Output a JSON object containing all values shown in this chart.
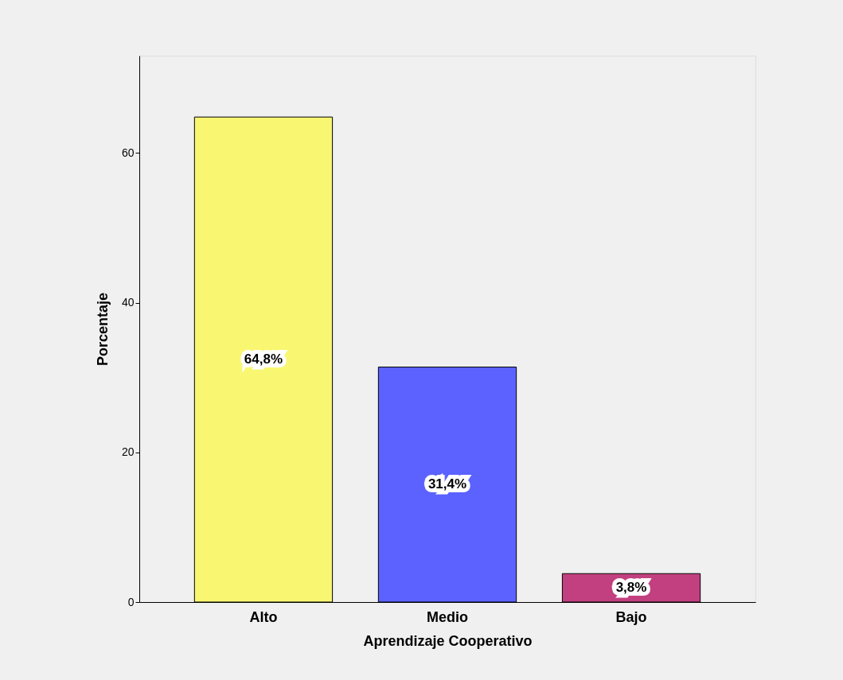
{
  "chart_data": {
    "type": "bar",
    "xlabel": "Aprendizaje Cooperativo",
    "ylabel": "Porcentaje",
    "categories": [
      "Alto",
      "Medio",
      "Bajo"
    ],
    "values": [
      64.8,
      31.4,
      3.8
    ],
    "colors": [
      "#f9f771",
      "#5b62ff",
      "#c2407f"
    ],
    "value_labels": [
      "64,8%",
      "31,4%",
      "3,8%"
    ],
    "ylim": [
      0,
      73
    ],
    "yticks": [
      0,
      20,
      40,
      60
    ],
    "grid": false,
    "legend": false
  }
}
